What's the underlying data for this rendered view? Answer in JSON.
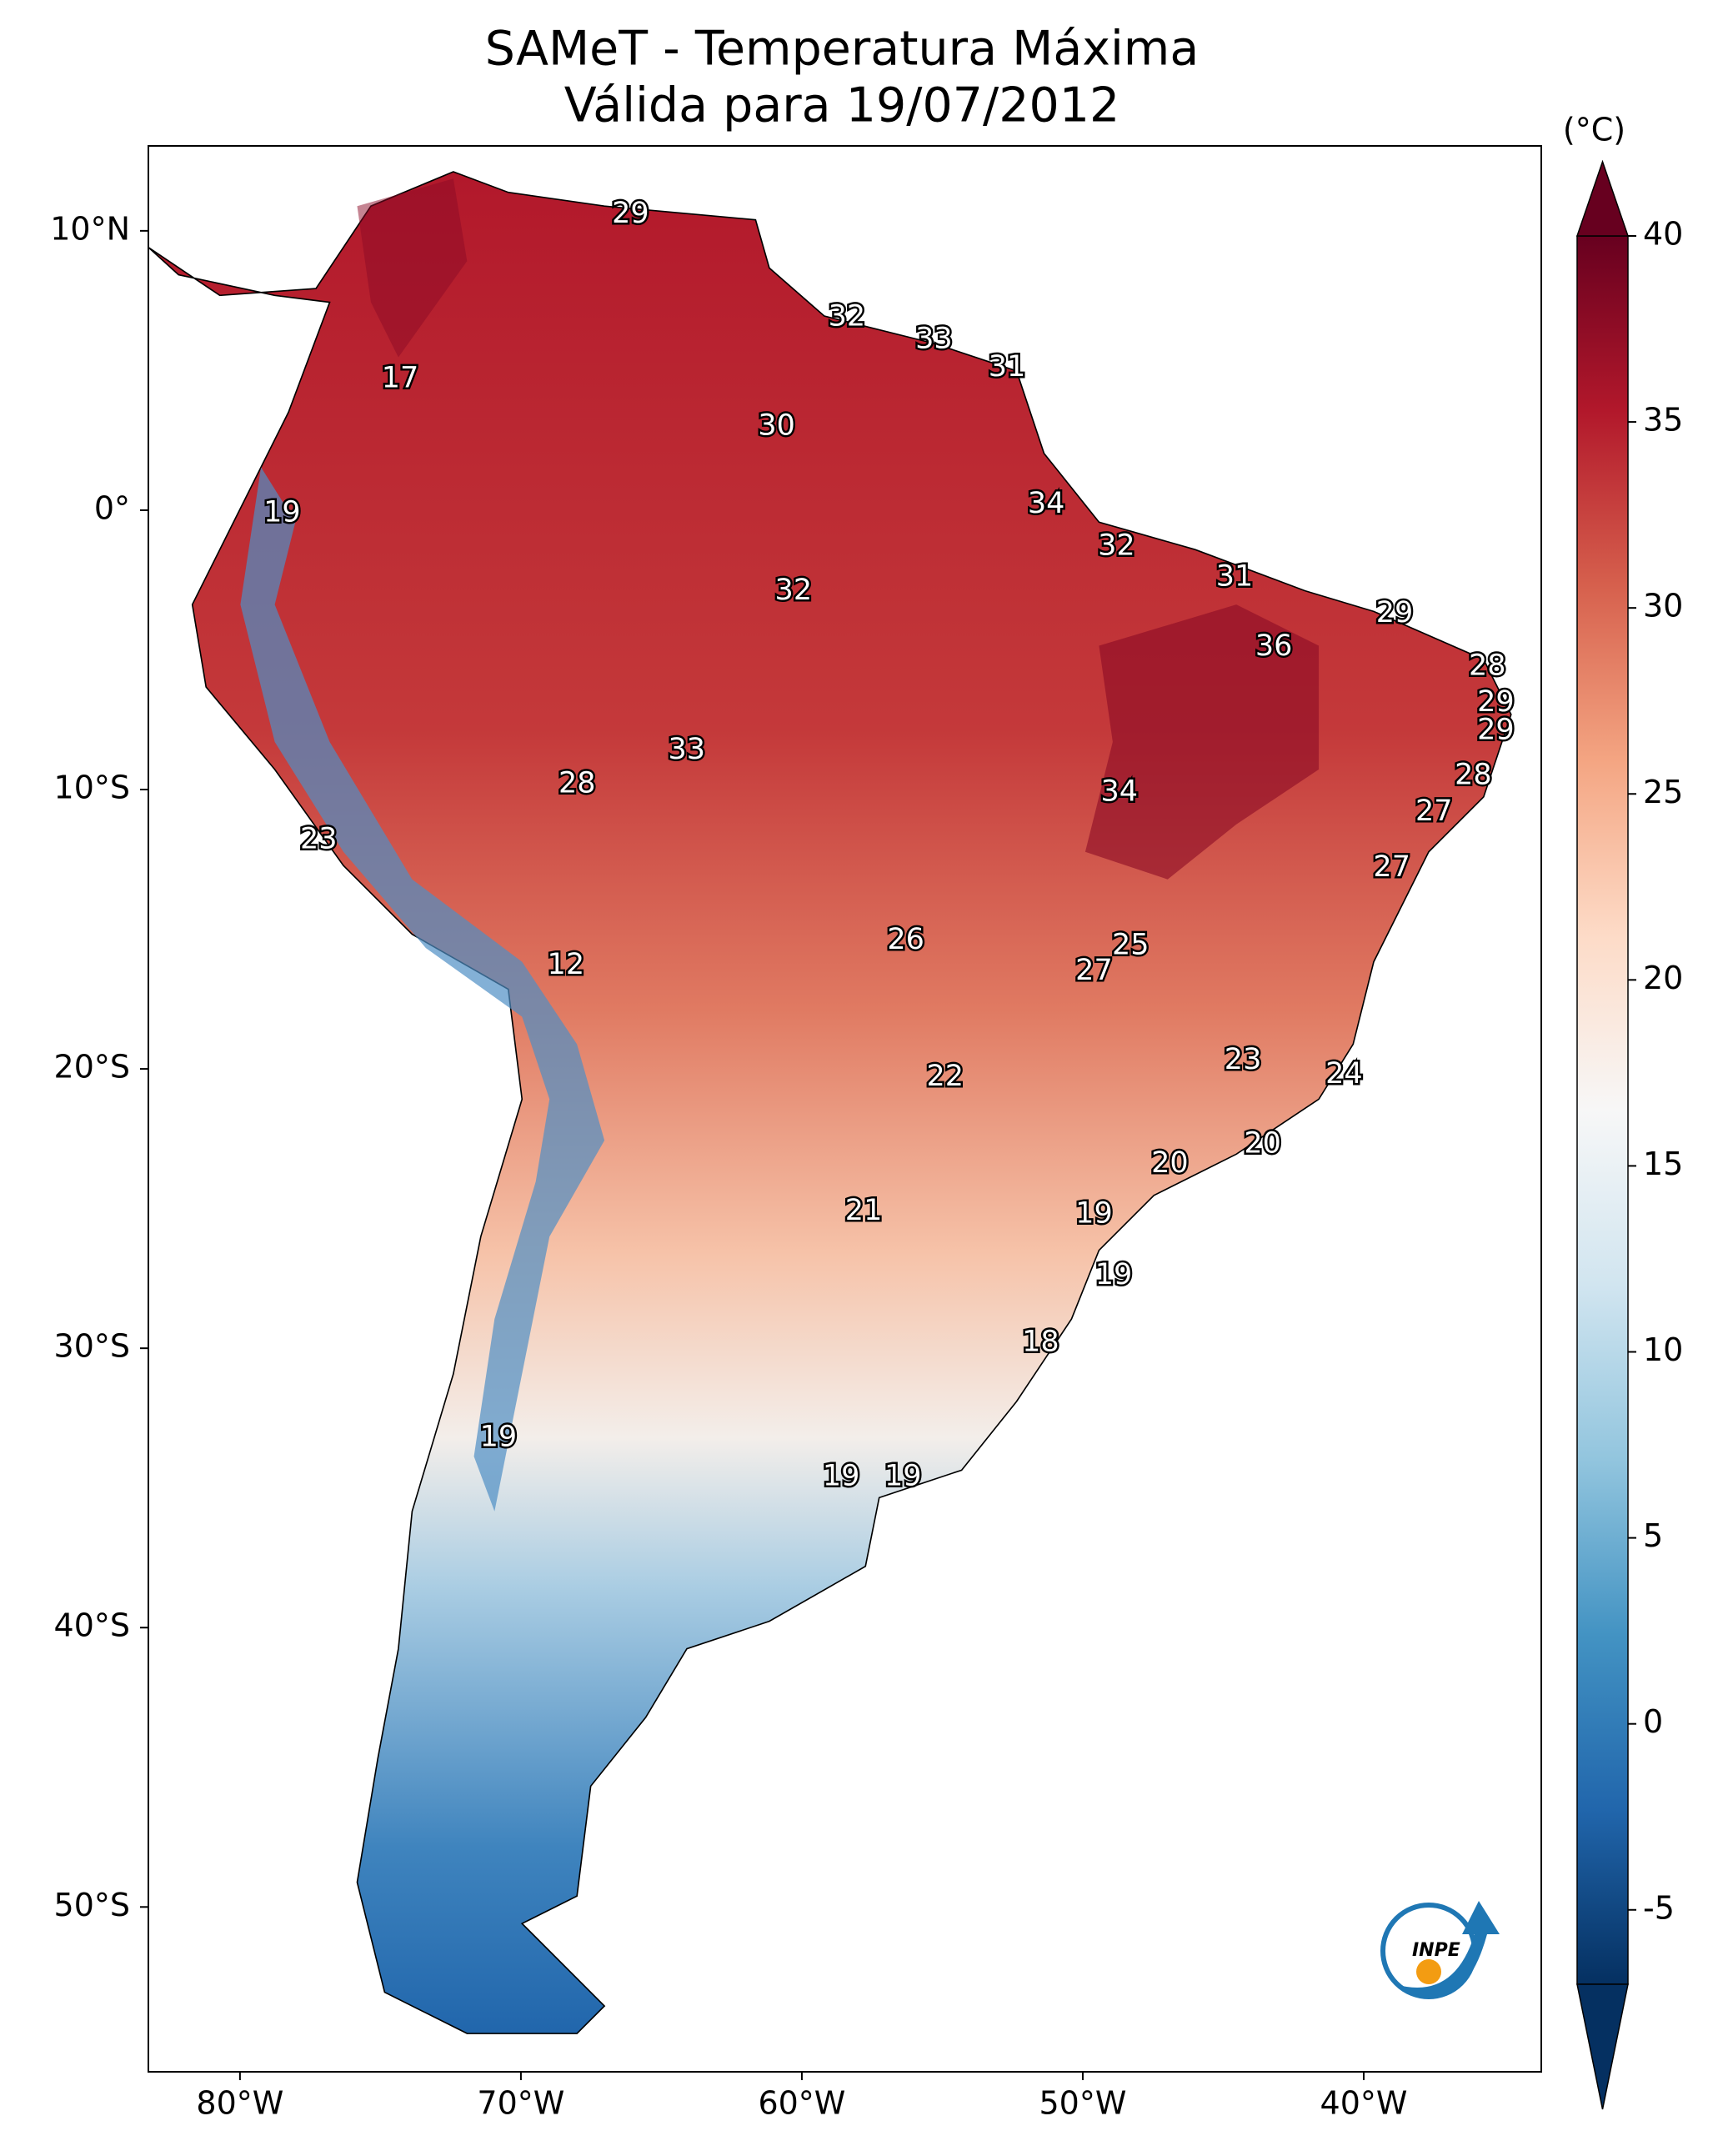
{
  "chart_data": {
    "type": "map",
    "title": [
      "SAMeT - Temperatura Máxima",
      "Válida para 19/07/2012"
    ],
    "xlim": [
      -83.26,
      -33.68
    ],
    "ylim": [
      -55.9,
      13.04
    ],
    "xticks": [
      {
        "value": -80,
        "label": "80°W"
      },
      {
        "value": -70,
        "label": "70°W"
      },
      {
        "value": -60,
        "label": "60°W"
      },
      {
        "value": -50,
        "label": "50°W"
      },
      {
        "value": -40,
        "label": "40°W"
      }
    ],
    "yticks": [
      {
        "value": 10,
        "label": "10°N"
      },
      {
        "value": 0,
        "label": "0°"
      },
      {
        "value": -10,
        "label": "10°S"
      },
      {
        "value": -20,
        "label": "20°S"
      },
      {
        "value": -30,
        "label": "30°S"
      },
      {
        "value": -40,
        "label": "40°S"
      },
      {
        "value": -50,
        "label": "50°S"
      }
    ],
    "points": [
      {
        "lon": -66.1,
        "lat": 10.6,
        "value": 29
      },
      {
        "lon": -58.4,
        "lat": 6.9,
        "value": 32
      },
      {
        "lon": -55.3,
        "lat": 6.1,
        "value": 33
      },
      {
        "lon": -52.7,
        "lat": 5.1,
        "value": 31
      },
      {
        "lon": -74.3,
        "lat": 4.7,
        "value": 17
      },
      {
        "lon": -60.9,
        "lat": 3.0,
        "value": 30
      },
      {
        "lon": -51.3,
        "lat": 0.2,
        "value": 34
      },
      {
        "lon": -78.5,
        "lat": -0.1,
        "value": 19
      },
      {
        "lon": -48.8,
        "lat": -1.3,
        "value": 32
      },
      {
        "lon": -44.6,
        "lat": -2.4,
        "value": 31
      },
      {
        "lon": -38.9,
        "lat": -3.7,
        "value": 29
      },
      {
        "lon": -60.3,
        "lat": -2.9,
        "value": 32
      },
      {
        "lon": -43.2,
        "lat": -4.9,
        "value": 36
      },
      {
        "lon": -35.6,
        "lat": -5.6,
        "value": 28
      },
      {
        "lon": -35.3,
        "lat": -6.9,
        "value": 29
      },
      {
        "lon": -35.3,
        "lat": -7.9,
        "value": 29
      },
      {
        "lon": -64.1,
        "lat": -8.6,
        "value": 33
      },
      {
        "lon": -36.1,
        "lat": -9.5,
        "value": 28
      },
      {
        "lon": -68.0,
        "lat": -9.8,
        "value": 28
      },
      {
        "lon": -48.7,
        "lat": -10.1,
        "value": 34
      },
      {
        "lon": -37.5,
        "lat": -10.8,
        "value": 27
      },
      {
        "lon": -77.2,
        "lat": -11.8,
        "value": 23
      },
      {
        "lon": -39.0,
        "lat": -12.8,
        "value": 27
      },
      {
        "lon": -56.3,
        "lat": -15.4,
        "value": 26
      },
      {
        "lon": -48.3,
        "lat": -15.6,
        "value": 25
      },
      {
        "lon": -68.4,
        "lat": -16.3,
        "value": 12
      },
      {
        "lon": -49.6,
        "lat": -16.5,
        "value": 27
      },
      {
        "lon": -44.3,
        "lat": -19.7,
        "value": 23
      },
      {
        "lon": -54.9,
        "lat": -20.3,
        "value": 22
      },
      {
        "lon": -40.7,
        "lat": -20.2,
        "value": 24
      },
      {
        "lon": -43.6,
        "lat": -22.7,
        "value": 20
      },
      {
        "lon": -46.9,
        "lat": -23.4,
        "value": 20
      },
      {
        "lon": -57.8,
        "lat": -25.1,
        "value": 21
      },
      {
        "lon": -49.6,
        "lat": -25.2,
        "value": 19
      },
      {
        "lon": -48.9,
        "lat": -27.4,
        "value": 19
      },
      {
        "lon": -51.5,
        "lat": -29.8,
        "value": 18
      },
      {
        "lon": -70.8,
        "lat": -33.2,
        "value": 19
      },
      {
        "lon": -58.6,
        "lat": -34.6,
        "value": 19
      },
      {
        "lon": -56.4,
        "lat": -34.6,
        "value": 19
      }
    ],
    "colorbar": {
      "label": "(°C)",
      "lim": [
        -7,
        40
      ],
      "ticks": [
        -5,
        0,
        5,
        10,
        15,
        20,
        25,
        30,
        35,
        40
      ],
      "colormap": [
        "#053061",
        "#2166ac",
        "#4393c3",
        "#92c5de",
        "#d1e5f0",
        "#f7f7f7",
        "#fddbc7",
        "#f4a582",
        "#d6604d",
        "#b2182b",
        "#67001f"
      ]
    },
    "logo": "INPE"
  }
}
